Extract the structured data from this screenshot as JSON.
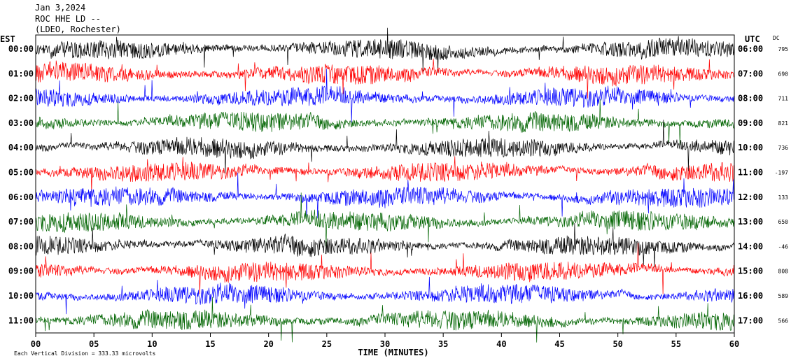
{
  "header": {
    "date": "Jan 3,2024",
    "station": "ROC HHE LD --",
    "location": "(LDEO, Rochester)"
  },
  "chart_data": {
    "type": "line",
    "title": "Jan 3,2024 ROC HHE LD -- (LDEO, Rochester)",
    "left_axis_label": "EST",
    "right_axis_label": "UTC",
    "dc_label": "DC",
    "xlabel": "TIME (MINUTES)",
    "xlim": [
      0,
      60
    ],
    "x_ticks": [
      "00",
      "05",
      "10",
      "15",
      "20",
      "25",
      "30",
      "35",
      "40",
      "45",
      "50",
      "55",
      "60"
    ],
    "footer_note": "Each Vertical Division = 333.33 microvolts",
    "trace_colors": [
      "#000000",
      "#ff0000",
      "#0000ff",
      "#006400"
    ],
    "rows": [
      {
        "est": "00:00",
        "utc": "06:00",
        "dc": "795"
      },
      {
        "est": "01:00",
        "utc": "07:00",
        "dc": "690"
      },
      {
        "est": "02:00",
        "utc": "08:00",
        "dc": "711"
      },
      {
        "est": "03:00",
        "utc": "09:00",
        "dc": "821"
      },
      {
        "est": "04:00",
        "utc": "10:00",
        "dc": "736"
      },
      {
        "est": "05:00",
        "utc": "11:00",
        "dc": "-197"
      },
      {
        "est": "06:00",
        "utc": "12:00",
        "dc": "133"
      },
      {
        "est": "07:00",
        "utc": "13:00",
        "dc": "650"
      },
      {
        "est": "08:00",
        "utc": "14:00",
        "dc": "-46"
      },
      {
        "est": "09:00",
        "utc": "15:00",
        "dc": "808"
      },
      {
        "est": "10:00",
        "utc": "16:00",
        "dc": "589"
      },
      {
        "est": "11:00",
        "utc": "17:00",
        "dc": "566"
      }
    ]
  }
}
